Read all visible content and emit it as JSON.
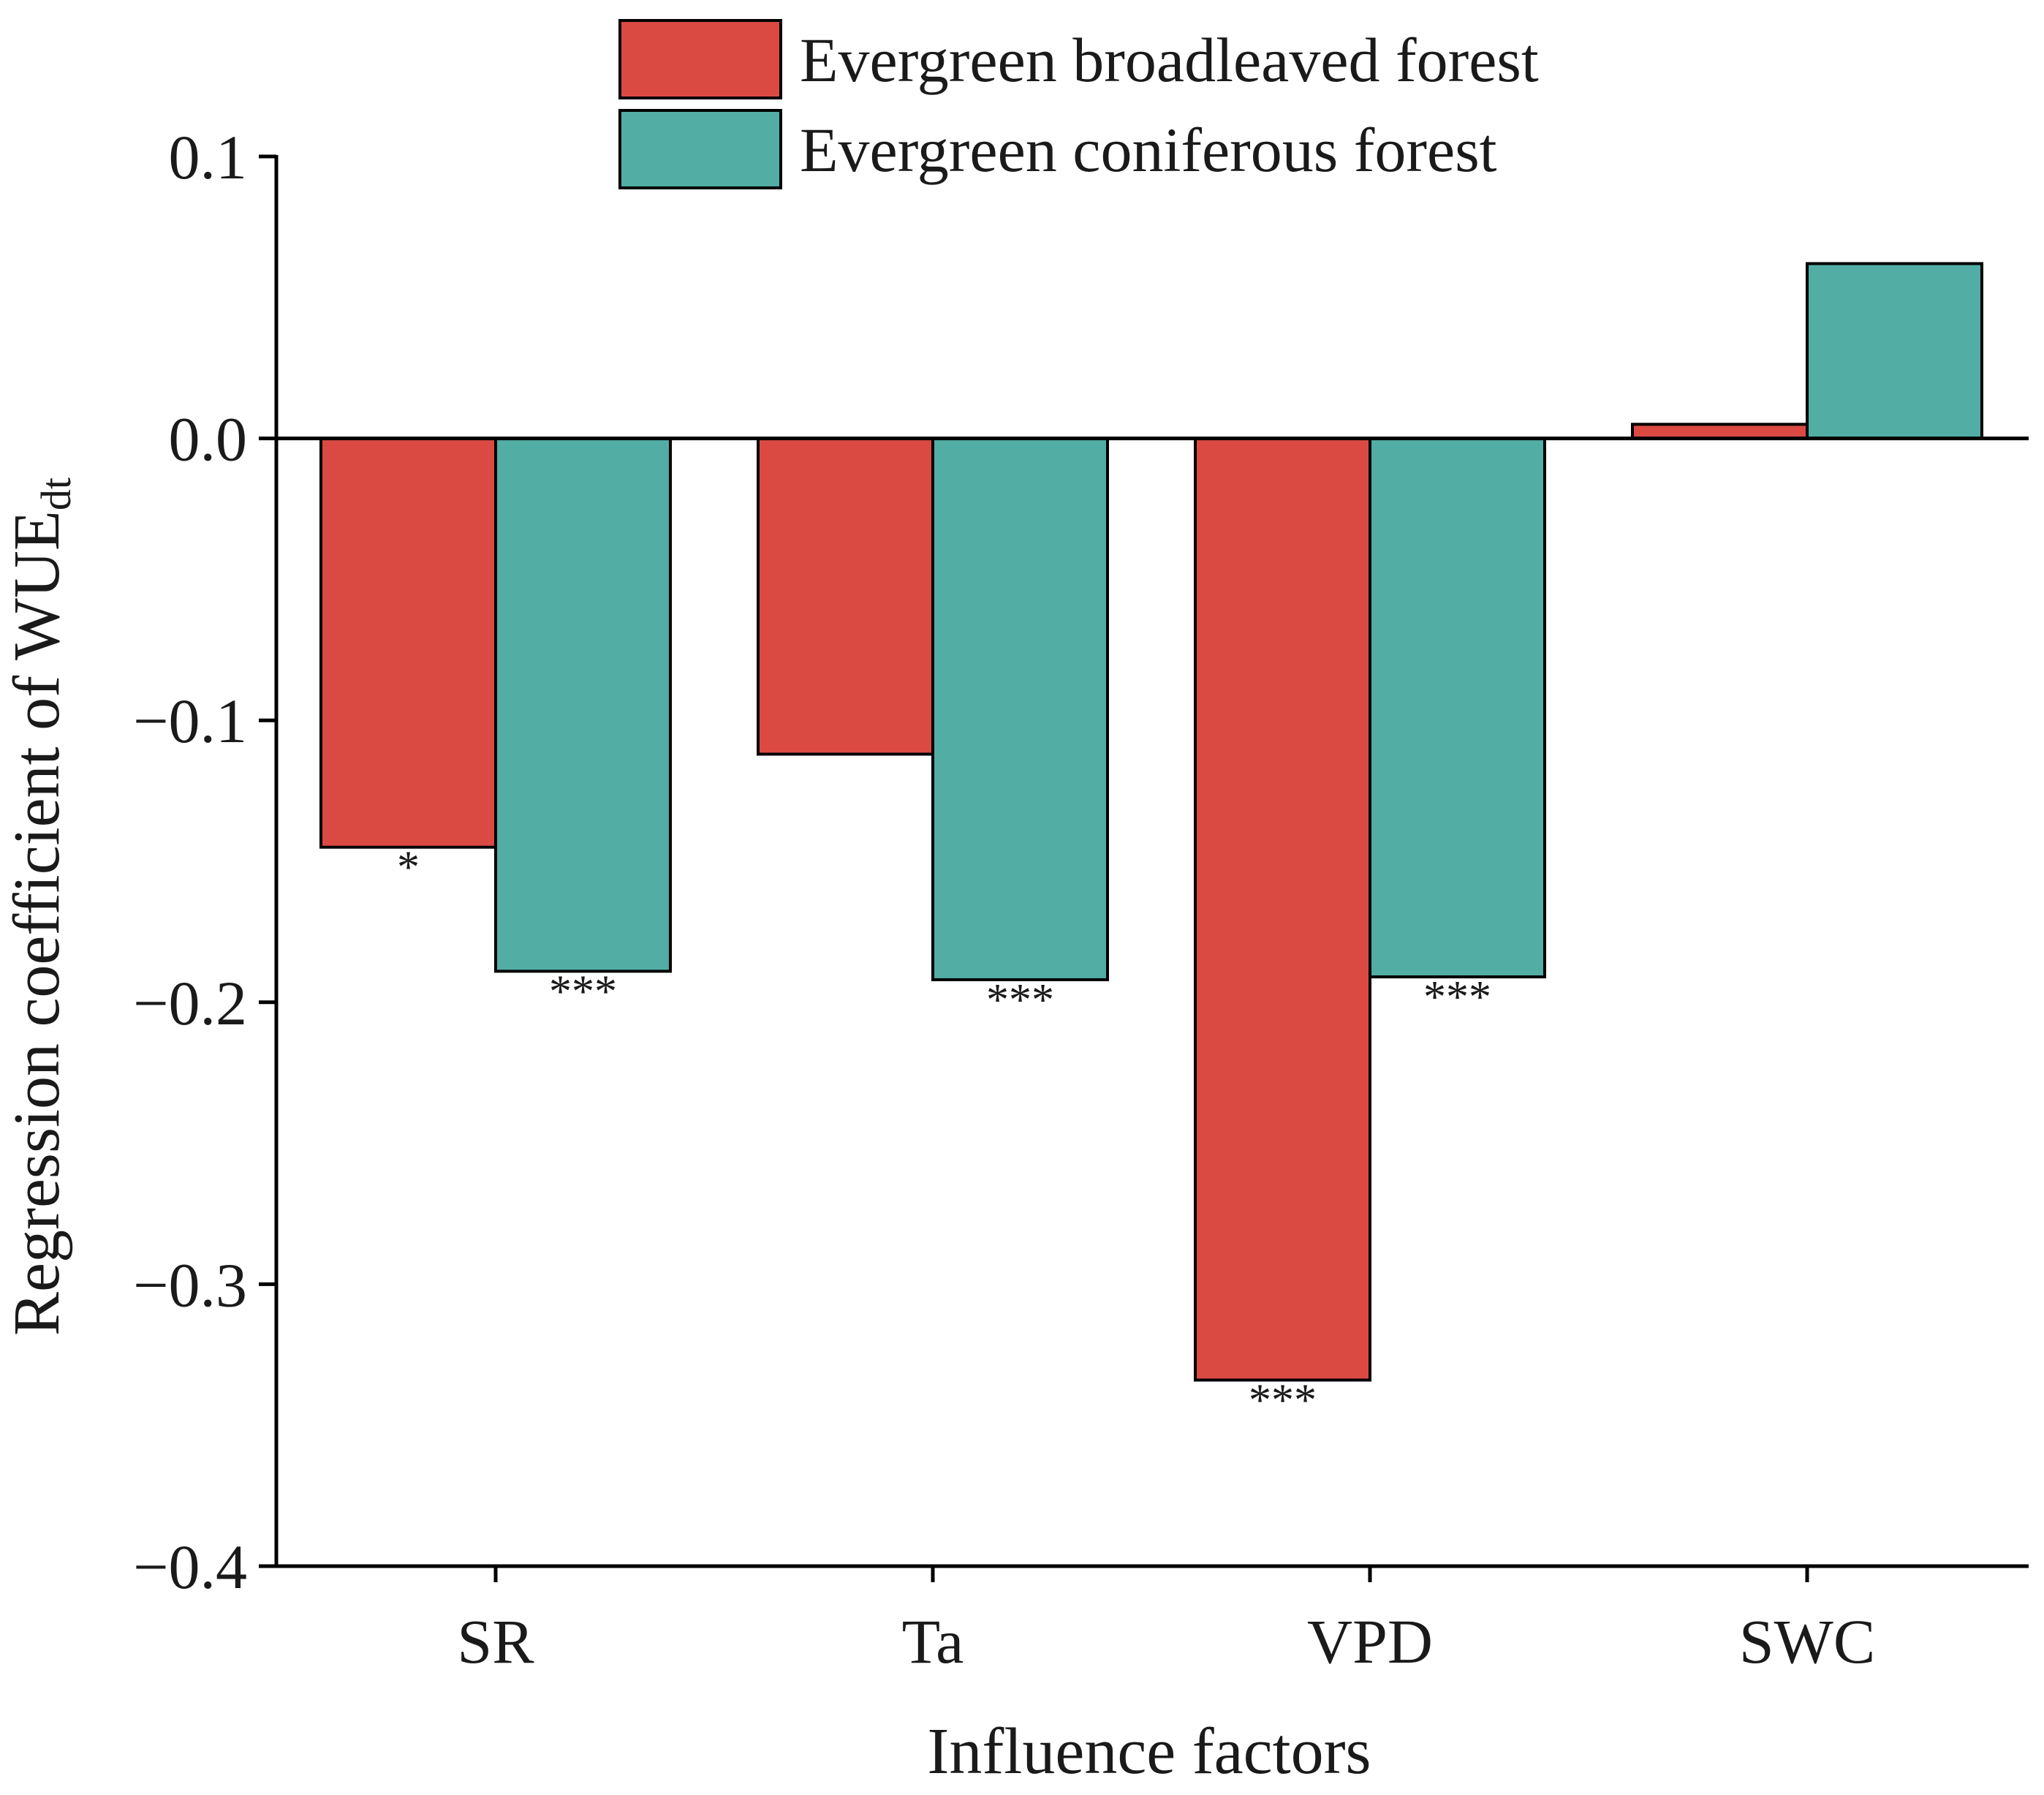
{
  "chart_data": {
    "type": "bar",
    "title": "",
    "xlabel": "Influence factors",
    "ylabel": "Regression coefficient of WUE",
    "ylabel_subscript": "dt",
    "categories": [
      "SR",
      "Ta",
      "VPD",
      "SWC"
    ],
    "series": [
      {
        "name": "Evergreen broadleaved forest",
        "color": "#DA4A43",
        "values": [
          -0.145,
          -0.112,
          -0.334,
          0.005
        ],
        "significance": [
          "*",
          "",
          "***",
          ""
        ]
      },
      {
        "name": "Evergreen coniferous forest",
        "color": "#52ADA5",
        "values": [
          -0.189,
          -0.192,
          -0.191,
          0.062
        ],
        "significance": [
          "***",
          "***",
          "***",
          ""
        ]
      }
    ],
    "ylim": [
      -0.4,
      0.1
    ],
    "yticks": [
      0.1,
      0.0,
      -0.1,
      -0.2,
      -0.3,
      -0.4
    ],
    "ytick_labels": [
      "0.1",
      "0.0",
      "−0.1",
      "−0.2",
      "−0.3",
      "−0.4"
    ],
    "grid": false,
    "legend_position": "top-center"
  }
}
